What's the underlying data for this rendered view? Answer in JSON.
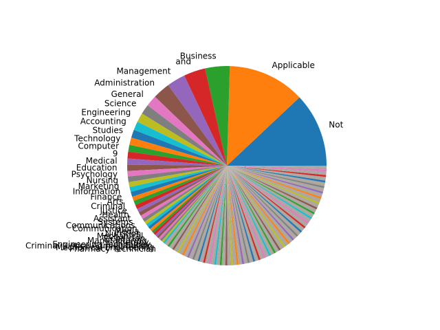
{
  "figure": {
    "background": "#ffffff"
  },
  "chart_data": {
    "type": "pie",
    "title": "",
    "start_angle_deg": 0,
    "direction": "counterclockwise",
    "wedge_colors": [
      "#1f77b4",
      "#ff7f0e",
      "#2ca02c",
      "#d62728",
      "#9467bd",
      "#8c564b",
      "#e377c2",
      "#7f7f7f",
      "#bcbd22",
      "#17becf"
    ],
    "tail_color": "#aaa59e",
    "categories": [
      "Not",
      "Applicable",
      "Business",
      "and",
      "Management",
      "Administration",
      "General",
      "Science",
      "Engineering",
      "Accounting",
      "Studies",
      "Technology",
      "Computer",
      "9",
      "Medical",
      "Education",
      "Psychology",
      "Nursing",
      "Marketing",
      "Information",
      "Finance",
      "Arts",
      "Criminal",
      "Justice",
      "Health",
      "Assistant",
      "Systems",
      "Communications",
      "Communication",
      "Media",
      "Nutrition",
      "Mechanical",
      "Technician",
      "Manufacturing",
      "Therapy",
      "Engineering Technology",
      "Criminal Justice Administration",
      "Mechanical Engineering",
      "Pharmacy Technician"
    ],
    "values": [
      12.0,
      12.5,
      4.0,
      3.5,
      3.0,
      2.8,
      1.8,
      1.6,
      1.5,
      1.4,
      1.3,
      1.2,
      1.1,
      1.1,
      1.0,
      1.0,
      0.9,
      0.9,
      0.8,
      0.8,
      0.8,
      0.7,
      0.7,
      0.7,
      0.6,
      0.6,
      0.6,
      0.55,
      0.5,
      0.5,
      0.45,
      0.45,
      0.4,
      0.4,
      0.4,
      0.35,
      0.35,
      0.35,
      0.3
    ],
    "other_small_categories_count": 120,
    "other_small_categories_total": 36.0
  }
}
